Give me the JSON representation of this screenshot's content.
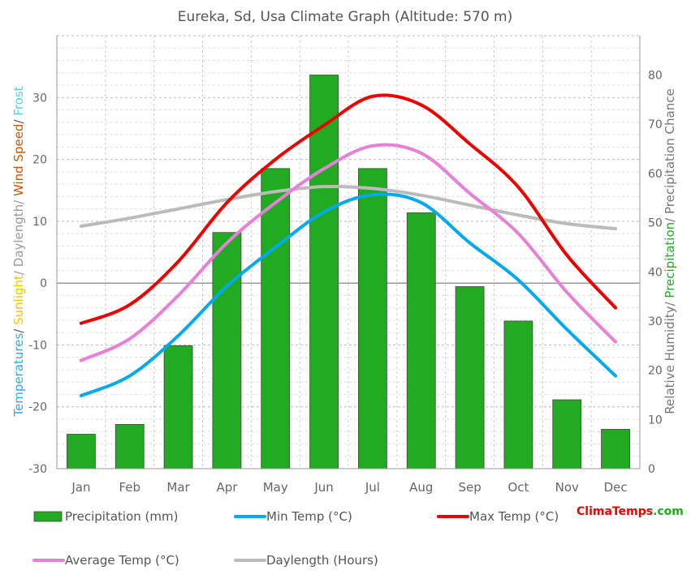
{
  "chart_data": {
    "type": "bar",
    "title": "Eureka, Sd, Usa Climate Graph (Altitude: 570 m)",
    "categories": [
      "Jan",
      "Feb",
      "Mar",
      "Apr",
      "May",
      "Jun",
      "Jul",
      "Aug",
      "Sep",
      "Oct",
      "Nov",
      "Dec"
    ],
    "left_axis": {
      "label_parts": [
        {
          "text": "Temperatures",
          "color": "#33aadd"
        },
        {
          "text": "/ ",
          "color": "#555555"
        },
        {
          "text": "Sunlight",
          "color": "#f5c400"
        },
        {
          "text": "/ Daylength/ ",
          "color": "#999999"
        },
        {
          "text": "Wind Speed",
          "color": "#cc5500"
        },
        {
          "text": "/ ",
          "color": "#555555"
        },
        {
          "text": "Frost",
          "color": "#55ccee"
        }
      ],
      "ylim": [
        -30,
        40
      ],
      "ticks": [
        -30,
        -20,
        -10,
        0,
        10,
        20,
        30
      ]
    },
    "right_axis": {
      "label_parts": [
        {
          "text": "Relative Humidity/ ",
          "color": "#777777"
        },
        {
          "text": "Precipitation",
          "color": "#22aa22"
        },
        {
          "text": "/ Precipitation Chance",
          "color": "#777777"
        }
      ],
      "ylim": [
        0,
        88
      ],
      "ticks": [
        0,
        10,
        20,
        30,
        40,
        50,
        60,
        70,
        80
      ]
    },
    "bars": {
      "name": "Precipitation (mm)",
      "color": "#22aa22",
      "values": [
        7,
        9,
        25,
        48,
        61,
        80,
        61,
        52,
        37,
        30,
        14,
        8
      ]
    },
    "series": [
      {
        "name": "Min Temp (°C)",
        "color": "#00aaee",
        "values": [
          -18.2,
          -15.0,
          -8.5,
          -0.5,
          5.8,
          11.5,
          14.3,
          13.0,
          6.5,
          0.5,
          -7.5,
          -15.0
        ]
      },
      {
        "name": "Max Temp (°C)",
        "color": "#ee0000",
        "values": [
          -6.5,
          -3.5,
          3.5,
          13.0,
          20.0,
          25.5,
          30.2,
          28.8,
          22.5,
          15.5,
          4.5,
          -4.0
        ]
      },
      {
        "name": "Average Temp (°C)",
        "color": "#e87fd8",
        "values": [
          -12.5,
          -9.0,
          -2.0,
          6.5,
          13.0,
          18.5,
          22.2,
          21.0,
          14.5,
          8.0,
          -1.5,
          -9.5
        ]
      },
      {
        "name": "Daylength (Hours)",
        "color": "#bbbbbb",
        "values": [
          9.2,
          10.5,
          12.0,
          13.5,
          14.8,
          15.6,
          15.3,
          14.2,
          12.6,
          11.0,
          9.6,
          8.8
        ]
      }
    ],
    "legend": [
      {
        "label": "Precipitation (mm)",
        "color": "#22aa22",
        "kind": "bar"
      },
      {
        "label": "Min Temp (°C)",
        "color": "#00aaee",
        "kind": "line"
      },
      {
        "label": "Max Temp (°C)",
        "color": "#ee0000",
        "kind": "line"
      },
      {
        "label": "Average Temp (°C)",
        "color": "#e87fd8",
        "kind": "line"
      },
      {
        "label": "Daylength (Hours)",
        "color": "#bbbbbb",
        "kind": "line"
      }
    ],
    "legend_placement": "bottom",
    "grid": true
  },
  "brand": {
    "part1": "Clima",
    "part2": "Temps",
    "part3": ".com",
    "color1": "#ee0000",
    "color2": "#ee0000",
    "color3": "#22aa22"
  }
}
